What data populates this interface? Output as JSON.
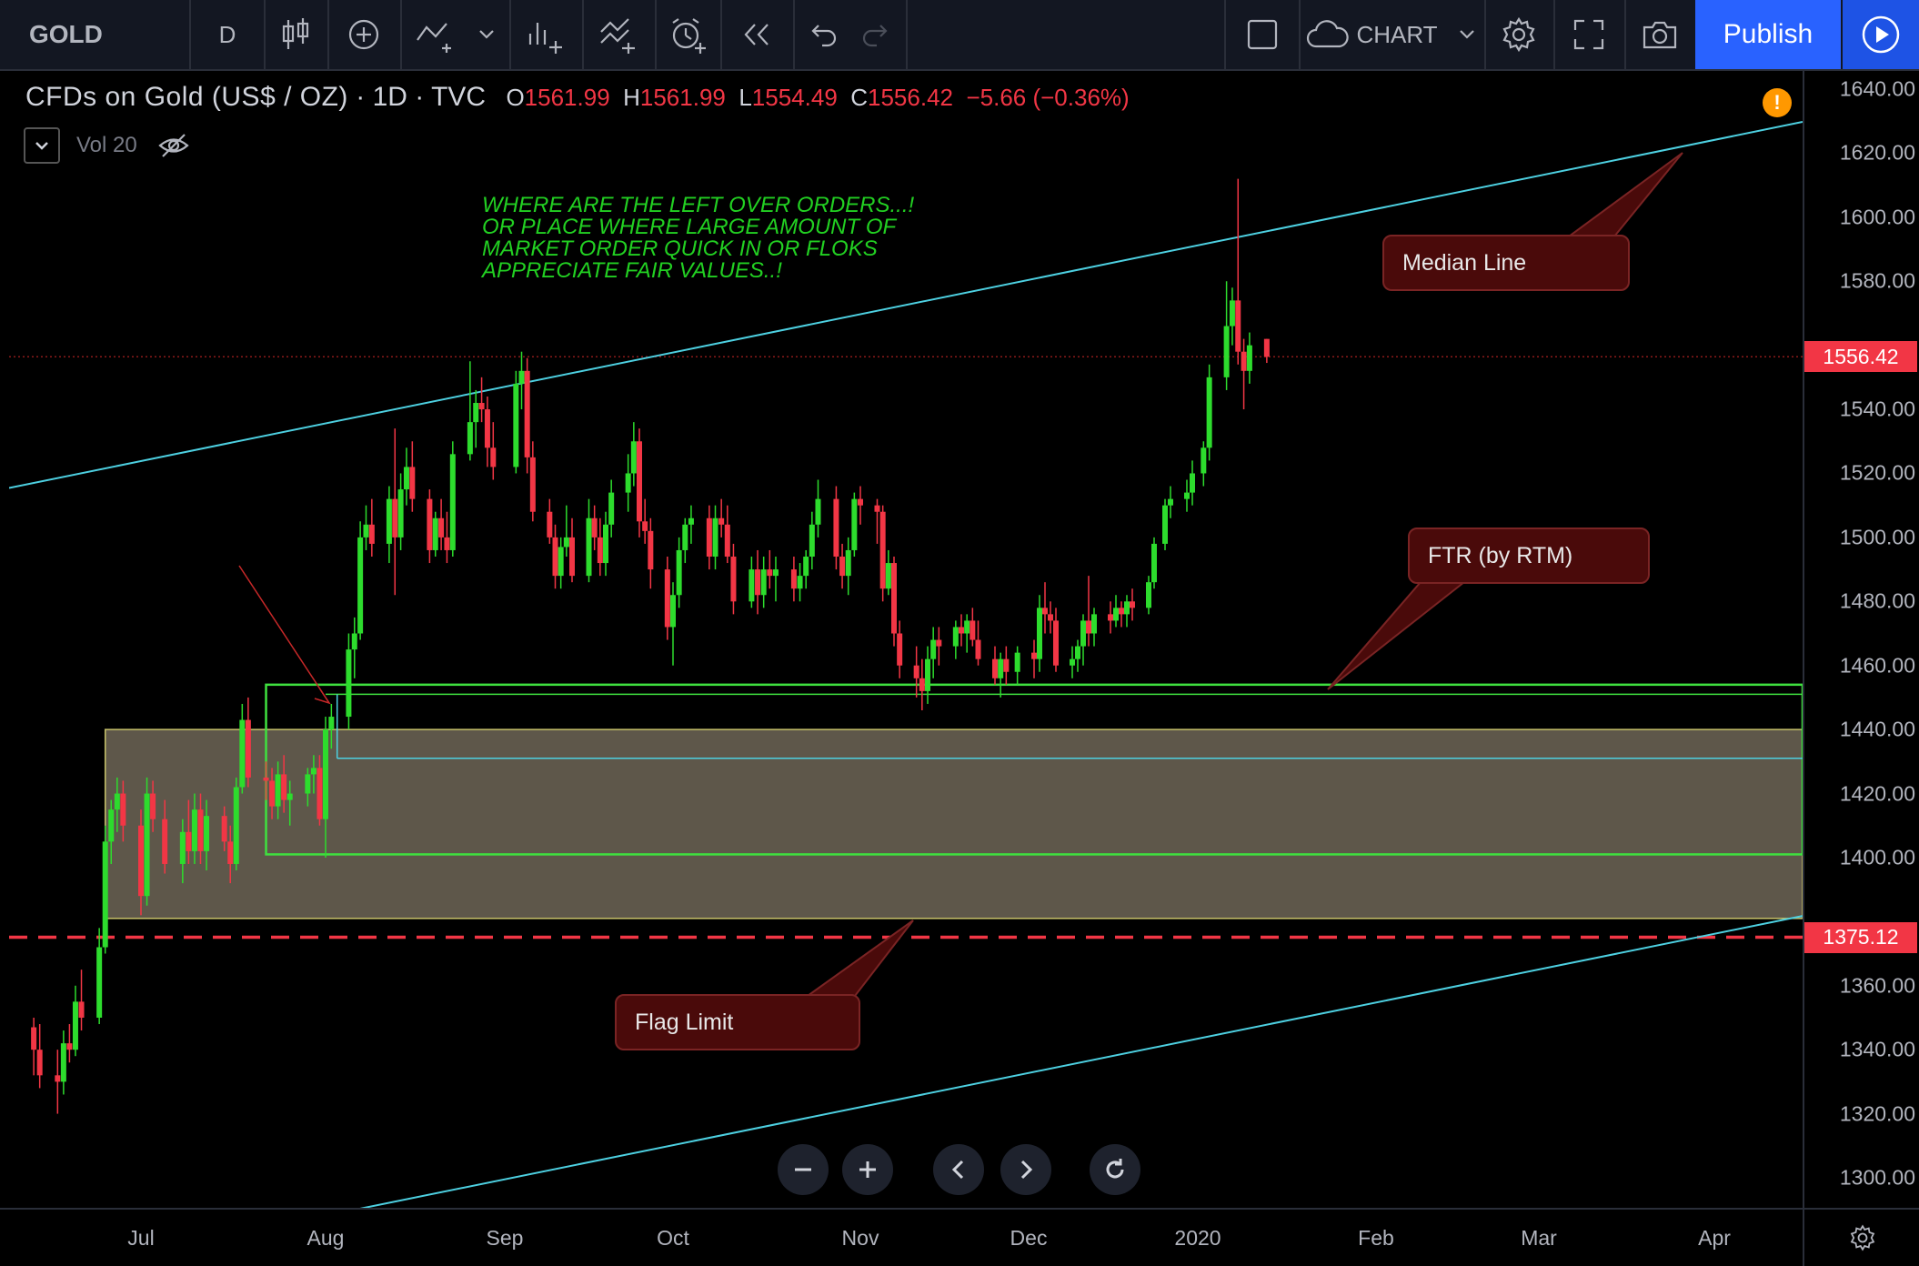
{
  "toolbar": {
    "symbol": "GOLD",
    "interval": "D",
    "chart_label": "CHART",
    "publish_label": "Publish"
  },
  "legend": {
    "title": "CFDs on Gold (US$ / OZ)",
    "interval": "1D",
    "source": "TVC",
    "open_key": "O",
    "open": "1561.99",
    "high_key": "H",
    "high": "1561.99",
    "low_key": "L",
    "low": "1554.49",
    "close_key": "C",
    "close": "1556.42",
    "change": "−5.66 (−0.36%)",
    "volume_label": "Vol 20"
  },
  "annotation_text": [
    "WHERE ARE THE LEFT OVER ORDERS...!",
    "OR PLACE WHERE LARGE AMOUNT OF",
    "MARKET ORDER QUICK IN OR FLOKS",
    "APPRECIATE FAIR VALUES..!"
  ],
  "callouts": {
    "median": "Median Line",
    "ftr": "FTR (by RTM)",
    "flag": "Flag Limit"
  },
  "price_axis": {
    "labels": [
      "1640.00",
      "1620.00",
      "1600.00",
      "1580.00",
      "1540.00",
      "1520.00",
      "1500.00",
      "1480.00",
      "1460.00",
      "1440.00",
      "1420.00",
      "1400.00",
      "1360.00",
      "1340.00",
      "1320.00",
      "1300.00"
    ],
    "current_price": "1556.42",
    "dashed_level": "1375.12"
  },
  "time_axis": {
    "labels": [
      "Jul",
      "Aug",
      "Sep",
      "Oct",
      "Nov",
      "Dec",
      "2020",
      "Feb",
      "Mar",
      "Apr"
    ]
  },
  "colors": {
    "up": "#2ddc2d",
    "down": "#f23645",
    "channel": "#4dd0e1",
    "zone_fill": "#5e574a",
    "zone_border": "#c8c26a",
    "green_box": "#3fe03f",
    "publish": "#2962ff"
  },
  "chart_data": {
    "type": "candlestick",
    "ylim": [
      1290,
      1650
    ],
    "x_start": "2019-06-13",
    "x_end": "2020-04-20",
    "levels": {
      "current": 1556.42,
      "flag_limit": 1375.12,
      "zone": [
        1381,
        1440
      ],
      "green_box": [
        1401,
        1454
      ],
      "ftr_line": 1451,
      "cyan_inner": 1431
    },
    "channel_upper": [
      [
        "2019-06-13",
        1517
      ],
      [
        "2020-04-20",
        1631
      ]
    ],
    "channel_lower": [
      [
        "2019-08-06",
        1290
      ],
      [
        "2020-04-20",
        1383
      ]
    ],
    "ohlc_notes": "Approximate daily candles read from chart",
    "candles": [
      [
        "2019-06-13",
        1347,
        1350,
        1332,
        1340
      ],
      [
        "2019-06-14",
        1340,
        1348,
        1328,
        1332
      ],
      [
        "2019-06-17",
        1332,
        1340,
        1320,
        1330
      ],
      [
        "2019-06-18",
        1330,
        1346,
        1326,
        1342
      ],
      [
        "2019-06-19",
        1342,
        1348,
        1336,
        1340
      ],
      [
        "2019-06-20",
        1340,
        1360,
        1338,
        1355
      ],
      [
        "2019-06-21",
        1355,
        1365,
        1346,
        1350
      ],
      [
        "2019-06-24",
        1350,
        1378,
        1348,
        1372
      ],
      [
        "2019-06-25",
        1372,
        1410,
        1370,
        1405
      ],
      [
        "2019-06-26",
        1405,
        1418,
        1398,
        1415
      ],
      [
        "2019-06-27",
        1415,
        1425,
        1408,
        1420
      ],
      [
        "2019-06-28",
        1420,
        1424,
        1405,
        1410
      ],
      [
        "2019-07-01",
        1410,
        1415,
        1382,
        1388
      ],
      [
        "2019-07-02",
        1388,
        1425,
        1385,
        1420
      ],
      [
        "2019-07-03",
        1420,
        1424,
        1408,
        1412
      ],
      [
        "2019-07-05",
        1412,
        1418,
        1395,
        1398
      ],
      [
        "2019-07-08",
        1398,
        1412,
        1392,
        1408
      ],
      [
        "2019-07-09",
        1408,
        1418,
        1398,
        1402
      ],
      [
        "2019-07-10",
        1402,
        1420,
        1398,
        1415
      ],
      [
        "2019-07-11",
        1415,
        1420,
        1398,
        1402
      ],
      [
        "2019-07-12",
        1402,
        1418,
        1396,
        1413
      ],
      [
        "2019-07-15",
        1413,
        1416,
        1402,
        1405
      ],
      [
        "2019-07-16",
        1405,
        1410,
        1392,
        1398
      ],
      [
        "2019-07-17",
        1398,
        1425,
        1396,
        1422
      ],
      [
        "2019-07-18",
        1422,
        1448,
        1420,
        1443
      ],
      [
        "2019-07-19",
        1443,
        1450,
        1422,
        1425
      ],
      [
        "2019-07-22",
        1425,
        1430,
        1418,
        1424
      ],
      [
        "2019-07-23",
        1424,
        1428,
        1412,
        1416
      ],
      [
        "2019-07-24",
        1416,
        1430,
        1412,
        1426
      ],
      [
        "2019-07-25",
        1426,
        1432,
        1414,
        1418
      ],
      [
        "2019-07-26",
        1418,
        1424,
        1410,
        1420
      ],
      [
        "2019-07-29",
        1420,
        1428,
        1416,
        1426
      ],
      [
        "2019-07-30",
        1426,
        1432,
        1420,
        1428
      ],
      [
        "2019-07-31",
        1428,
        1432,
        1410,
        1412
      ],
      [
        "2019-08-01",
        1412,
        1444,
        1400,
        1440
      ],
      [
        "2019-08-02",
        1440,
        1448,
        1434,
        1444
      ],
      [
        "2019-08-05",
        1444,
        1470,
        1440,
        1465
      ],
      [
        "2019-08-06",
        1465,
        1475,
        1456,
        1470
      ],
      [
        "2019-08-07",
        1470,
        1505,
        1468,
        1500
      ],
      [
        "2019-08-08",
        1500,
        1510,
        1496,
        1504
      ],
      [
        "2019-08-09",
        1504,
        1512,
        1494,
        1498
      ],
      [
        "2019-08-12",
        1498,
        1516,
        1492,
        1512
      ],
      [
        "2019-08-13",
        1512,
        1534,
        1482,
        1500
      ],
      [
        "2019-08-14",
        1500,
        1520,
        1496,
        1515
      ],
      [
        "2019-08-15",
        1515,
        1528,
        1510,
        1522
      ],
      [
        "2019-08-16",
        1522,
        1530,
        1508,
        1512
      ],
      [
        "2019-08-19",
        1512,
        1515,
        1492,
        1496
      ],
      [
        "2019-08-20",
        1496,
        1508,
        1494,
        1506
      ],
      [
        "2019-08-21",
        1506,
        1512,
        1496,
        1500
      ],
      [
        "2019-08-22",
        1500,
        1508,
        1492,
        1496
      ],
      [
        "2019-08-23",
        1496,
        1530,
        1494,
        1526
      ],
      [
        "2019-08-26",
        1526,
        1555,
        1524,
        1536
      ],
      [
        "2019-08-27",
        1536,
        1546,
        1528,
        1542
      ],
      [
        "2019-08-28",
        1542,
        1550,
        1536,
        1540
      ],
      [
        "2019-08-29",
        1540,
        1544,
        1522,
        1528
      ],
      [
        "2019-08-30",
        1528,
        1536,
        1518,
        1522
      ],
      [
        "2019-09-03",
        1522,
        1552,
        1520,
        1548
      ],
      [
        "2019-09-04",
        1548,
        1558,
        1540,
        1552
      ],
      [
        "2019-09-05",
        1552,
        1556,
        1520,
        1525
      ],
      [
        "2019-09-06",
        1525,
        1530,
        1505,
        1508
      ],
      [
        "2019-09-09",
        1508,
        1512,
        1498,
        1500
      ],
      [
        "2019-09-10",
        1500,
        1504,
        1484,
        1488
      ],
      [
        "2019-09-11",
        1488,
        1500,
        1484,
        1497
      ],
      [
        "2019-09-12",
        1497,
        1510,
        1494,
        1500
      ],
      [
        "2019-09-13",
        1500,
        1506,
        1486,
        1488
      ],
      [
        "2019-09-16",
        1488,
        1512,
        1486,
        1506
      ],
      [
        "2019-09-17",
        1506,
        1510,
        1496,
        1500
      ],
      [
        "2019-09-18",
        1500,
        1506,
        1488,
        1492
      ],
      [
        "2019-09-19",
        1492,
        1508,
        1488,
        1504
      ],
      [
        "2019-09-20",
        1504,
        1518,
        1500,
        1514
      ],
      [
        "2019-09-23",
        1514,
        1526,
        1508,
        1520
      ],
      [
        "2019-09-24",
        1520,
        1536,
        1516,
        1530
      ],
      [
        "2019-09-25",
        1530,
        1534,
        1500,
        1505
      ],
      [
        "2019-09-26",
        1505,
        1512,
        1498,
        1502
      ],
      [
        "2019-09-27",
        1502,
        1506,
        1484,
        1490
      ],
      [
        "2019-09-30",
        1490,
        1494,
        1468,
        1472
      ],
      [
        "2019-10-01",
        1472,
        1486,
        1460,
        1482
      ],
      [
        "2019-10-02",
        1482,
        1500,
        1478,
        1496
      ],
      [
        "2019-10-03",
        1496,
        1506,
        1492,
        1504
      ],
      [
        "2019-10-04",
        1504,
        1510,
        1498,
        1506
      ],
      [
        "2019-10-07",
        1506,
        1510,
        1490,
        1494
      ],
      [
        "2019-10-08",
        1494,
        1510,
        1490,
        1506
      ],
      [
        "2019-10-09",
        1506,
        1512,
        1500,
        1504
      ],
      [
        "2019-10-10",
        1504,
        1510,
        1492,
        1494
      ],
      [
        "2019-10-11",
        1494,
        1498,
        1476,
        1480
      ],
      [
        "2019-10-14",
        1480,
        1494,
        1478,
        1490
      ],
      [
        "2019-10-15",
        1490,
        1496,
        1476,
        1482
      ],
      [
        "2019-10-16",
        1482,
        1494,
        1478,
        1490
      ],
      [
        "2019-10-17",
        1490,
        1496,
        1484,
        1488
      ],
      [
        "2019-10-18",
        1488,
        1494,
        1480,
        1490
      ],
      [
        "2019-10-21",
        1490,
        1494,
        1480,
        1484
      ],
      [
        "2019-10-22",
        1484,
        1492,
        1480,
        1488
      ],
      [
        "2019-10-23",
        1488,
        1496,
        1484,
        1494
      ],
      [
        "2019-10-24",
        1494,
        1508,
        1490,
        1504
      ],
      [
        "2019-10-25",
        1504,
        1518,
        1500,
        1512
      ],
      [
        "2019-10-28",
        1512,
        1516,
        1490,
        1494
      ],
      [
        "2019-10-29",
        1494,
        1498,
        1484,
        1488
      ],
      [
        "2019-10-30",
        1488,
        1500,
        1482,
        1496
      ],
      [
        "2019-10-31",
        1496,
        1514,
        1494,
        1512
      ],
      [
        "2019-11-01",
        1512,
        1516,
        1504,
        1510
      ],
      [
        "2019-11-04",
        1510,
        1512,
        1498,
        1508
      ],
      [
        "2019-11-05",
        1508,
        1510,
        1480,
        1484
      ],
      [
        "2019-11-06",
        1484,
        1496,
        1482,
        1492
      ],
      [
        "2019-11-07",
        1492,
        1494,
        1466,
        1470
      ],
      [
        "2019-11-08",
        1470,
        1474,
        1456,
        1460
      ],
      [
        "2019-11-11",
        1460,
        1466,
        1450,
        1456
      ],
      [
        "2019-11-12",
        1456,
        1462,
        1446,
        1452
      ],
      [
        "2019-11-13",
        1452,
        1466,
        1448,
        1462
      ],
      [
        "2019-11-14",
        1462,
        1472,
        1456,
        1468
      ],
      [
        "2019-11-15",
        1468,
        1472,
        1460,
        1466
      ],
      [
        "2019-11-18",
        1466,
        1474,
        1462,
        1472
      ],
      [
        "2019-11-19",
        1472,
        1476,
        1466,
        1470
      ],
      [
        "2019-11-20",
        1470,
        1476,
        1464,
        1474
      ],
      [
        "2019-11-21",
        1474,
        1478,
        1466,
        1468
      ],
      [
        "2019-11-22",
        1468,
        1474,
        1460,
        1462
      ],
      [
        "2019-11-25",
        1462,
        1466,
        1454,
        1456
      ],
      [
        "2019-11-26",
        1456,
        1464,
        1450,
        1462
      ],
      [
        "2019-11-27",
        1462,
        1466,
        1454,
        1458
      ],
      [
        "2019-11-29",
        1458,
        1466,
        1454,
        1464
      ],
      [
        "2019-12-02",
        1464,
        1468,
        1456,
        1462
      ],
      [
        "2019-12-03",
        1462,
        1482,
        1458,
        1478
      ],
      [
        "2019-12-04",
        1478,
        1486,
        1470,
        1476
      ],
      [
        "2019-12-05",
        1476,
        1480,
        1470,
        1474
      ],
      [
        "2019-12-06",
        1474,
        1478,
        1458,
        1460
      ],
      [
        "2019-12-09",
        1460,
        1466,
        1456,
        1462
      ],
      [
        "2019-12-10",
        1462,
        1468,
        1458,
        1466
      ],
      [
        "2019-12-11",
        1466,
        1476,
        1460,
        1474
      ],
      [
        "2019-12-12",
        1474,
        1488,
        1466,
        1470
      ],
      [
        "2019-12-13",
        1470,
        1478,
        1466,
        1476
      ],
      [
        "2019-12-16",
        1476,
        1480,
        1470,
        1474
      ],
      [
        "2019-12-17",
        1474,
        1482,
        1472,
        1478
      ],
      [
        "2019-12-18",
        1478,
        1480,
        1472,
        1476
      ],
      [
        "2019-12-19",
        1476,
        1482,
        1472,
        1480
      ],
      [
        "2019-12-20",
        1480,
        1484,
        1474,
        1478
      ],
      [
        "2019-12-23",
        1478,
        1488,
        1476,
        1486
      ],
      [
        "2019-12-24",
        1486,
        1500,
        1484,
        1498
      ],
      [
        "2019-12-26",
        1498,
        1512,
        1496,
        1510
      ],
      [
        "2019-12-27",
        1510,
        1516,
        1506,
        1512
      ],
      [
        "2019-12-30",
        1512,
        1518,
        1508,
        1514
      ],
      [
        "2019-12-31",
        1514,
        1524,
        1510,
        1520
      ],
      [
        "2020-01-02",
        1520,
        1530,
        1516,
        1528
      ],
      [
        "2020-01-03",
        1528,
        1554,
        1524,
        1550
      ],
      [
        "2020-01-06",
        1550,
        1580,
        1546,
        1566
      ],
      [
        "2020-01-07",
        1566,
        1578,
        1560,
        1574
      ],
      [
        "2020-01-08",
        1574,
        1612,
        1554,
        1558
      ],
      [
        "2020-01-09",
        1558,
        1562,
        1540,
        1552
      ],
      [
        "2020-01-10",
        1552,
        1564,
        1548,
        1560
      ],
      [
        "2020-01-13",
        1561.99,
        1561.99,
        1554.49,
        1556.42
      ]
    ]
  }
}
